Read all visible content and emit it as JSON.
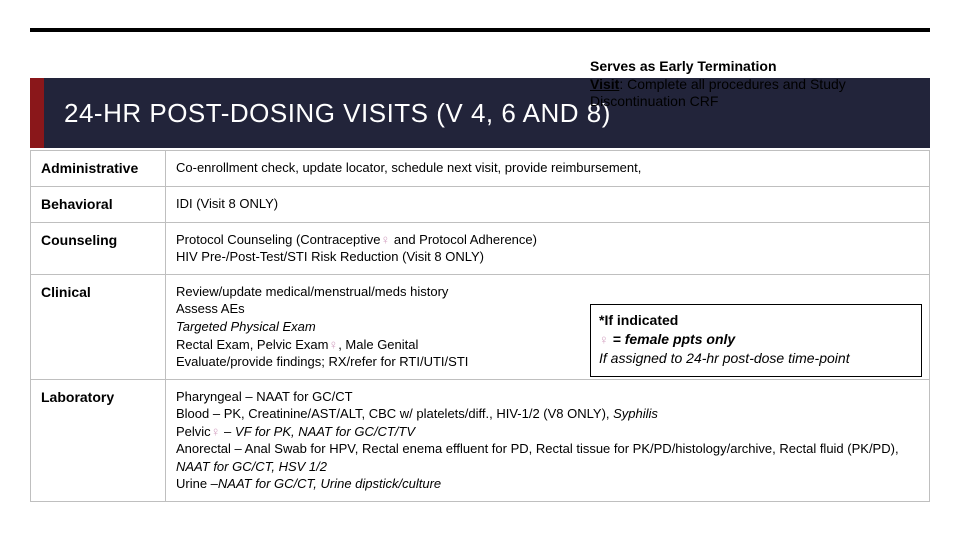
{
  "colors": {
    "darkBar": "#22243a",
    "accentRed": "#8a171a",
    "femalePink": "#d4a3c2",
    "border": "#bfbfbf"
  },
  "title": "24-HR POST-DOSING VISITS (V 4, 6 AND 8)",
  "callout_et": {
    "line1_bold": "Serves as Early Termination",
    "visit_label": "Visit",
    "rest": ": Complete all procedures and Study Discontinuation CRF"
  },
  "rows": {
    "administrative": {
      "label": "Administrative",
      "text": "Co-enrollment check, update locator, schedule next visit, provide reimbursement,"
    },
    "behavioral": {
      "label": "Behavioral",
      "text": "IDI (Visit 8 ONLY)"
    },
    "counseling": {
      "label": "Counseling",
      "line1a": "Protocol Counseling (Contraceptive",
      "line1b": " and Protocol Adherence)",
      "line2": "HIV Pre-/Post-Test/STI Risk Reduction (Visit 8 ONLY)"
    },
    "clinical": {
      "label": "Clinical",
      "l1": "Review/update medical/menstrual/meds history",
      "l2": "Assess AEs",
      "l3": "Targeted Physical Exam",
      "l4a": "Rectal Exam, Pelvic Exam",
      "l4b": ", Male Genital",
      "l5": "Evaluate/provide findings; RX/refer for RTI/UTI/STI"
    },
    "laboratory": {
      "label": "Laboratory",
      "l1": "Pharyngeal – NAAT for GC/CT",
      "l2a": "Blood – PK, Creatinine/AST/ALT,  CBC w/ platelets/diff., HIV-1/2 (V8 ONLY), ",
      "l2b_italic": "Syphilis",
      "l3a": "Pelvic",
      "l3b": " – ",
      "l3c_italic": "VF for PK, NAAT for GC/CT/TV",
      "l4a": "Anorectal – Anal Swab for HPV,  Rectal enema effluent for PD, Rectal tissue for PK/PD/histology/archive, Rectal fluid (PK/PD), ",
      "l4b_italic": "NAAT for GC/CT, HSV 1/2",
      "l5a": "Urine –",
      "l5b_italic": "NAAT for GC/CT, Urine dipstick/culture"
    }
  },
  "female_symbol": "♀",
  "callout_box": {
    "line1": "*If indicated",
    "line2_pre": "♀",
    "line2_post": " = female ppts only",
    "line3": "If assigned to 24-hr post-dose time-point"
  }
}
